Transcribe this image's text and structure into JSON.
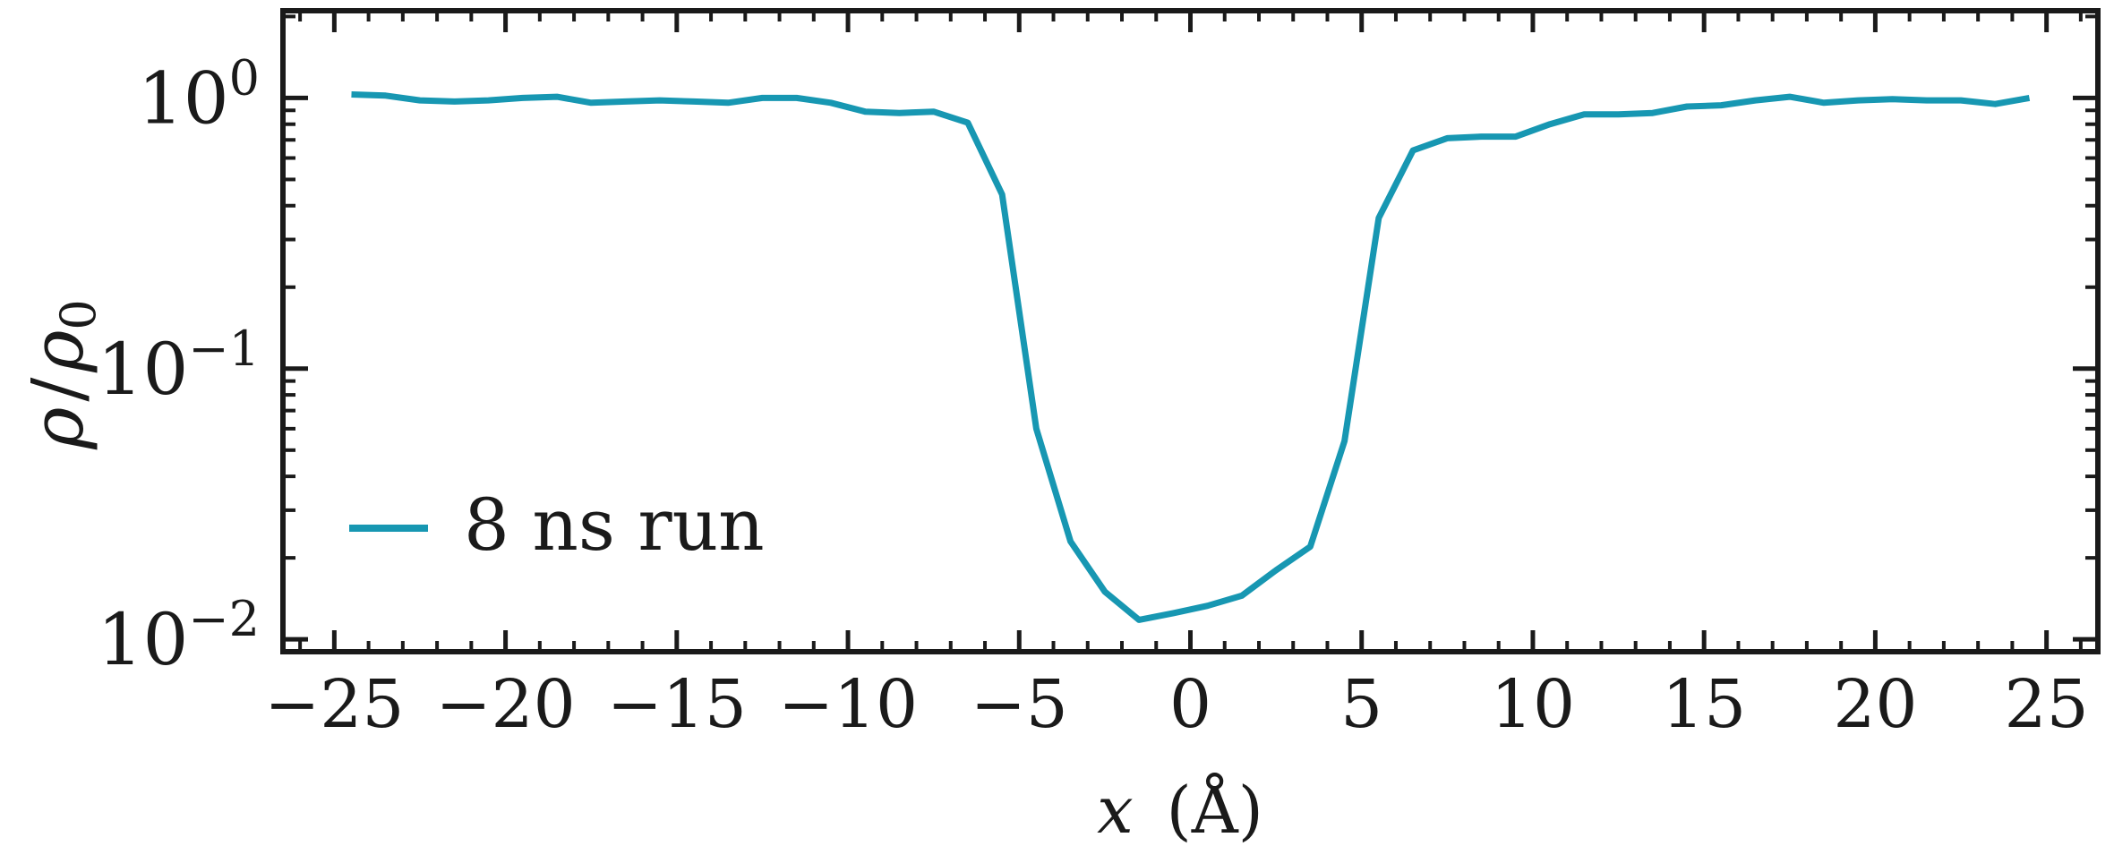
{
  "chart_data": {
    "type": "line",
    "xlabel_var": "x",
    "xlabel_unit": "(Å)",
    "ylabel_num": "ρ",
    "ylabel_den": "ρ",
    "ylabel_den_sub": "0",
    "yscale": "log",
    "xlim": [
      -26.5,
      26.5
    ],
    "ylim": [
      0.009,
      2.1
    ],
    "xticks": [
      {
        "value": -25,
        "label": "−25"
      },
      {
        "value": -20,
        "label": "−20"
      },
      {
        "value": -15,
        "label": "−15"
      },
      {
        "value": -10,
        "label": "−10"
      },
      {
        "value": -5,
        "label": "−5"
      },
      {
        "value": 0,
        "label": "0"
      },
      {
        "value": 5,
        "label": "5"
      },
      {
        "value": 10,
        "label": "10"
      },
      {
        "value": 15,
        "label": "15"
      },
      {
        "value": 20,
        "label": "20"
      },
      {
        "value": 25,
        "label": "25"
      }
    ],
    "yticks": [
      {
        "value": 1,
        "base": "10",
        "exp": "0"
      },
      {
        "value": 0.1,
        "base": "10",
        "exp": "−1"
      },
      {
        "value": 0.01,
        "base": "10",
        "exp": "−2"
      }
    ],
    "legend": {
      "label": "8 ns run",
      "position": "lower-left"
    },
    "series": [
      {
        "name": "8 ns run",
        "color": "#1797b2",
        "x": [
          -24.5,
          -23.5,
          -22.5,
          -21.5,
          -20.5,
          -19.5,
          -18.5,
          -17.5,
          -16.5,
          -15.5,
          -14.5,
          -13.5,
          -12.5,
          -11.5,
          -10.5,
          -9.5,
          -8.5,
          -7.5,
          -6.5,
          -5.5,
          -4.5,
          -3.5,
          -2.5,
          -1.5,
          -0.5,
          0.5,
          1.5,
          2.5,
          3.5,
          4.5,
          5.5,
          6.5,
          7.5,
          8.5,
          9.5,
          10.5,
          11.5,
          12.5,
          13.5,
          14.5,
          15.5,
          16.5,
          17.5,
          18.5,
          19.5,
          20.5,
          21.5,
          22.5,
          23.5,
          24.5
        ],
        "y": [
          1.03,
          1.02,
          0.98,
          0.97,
          0.98,
          1.0,
          1.01,
          0.96,
          0.97,
          0.98,
          0.97,
          0.96,
          1.0,
          1.0,
          0.96,
          0.89,
          0.88,
          0.89,
          0.81,
          0.44,
          0.06,
          0.023,
          0.015,
          0.0118,
          0.0125,
          0.0133,
          0.0145,
          0.018,
          0.022,
          0.054,
          0.36,
          0.64,
          0.71,
          0.72,
          0.72,
          0.8,
          0.87,
          0.87,
          0.88,
          0.93,
          0.94,
          0.98,
          1.01,
          0.96,
          0.98,
          0.99,
          0.98,
          0.98,
          0.95,
          1.0
        ]
      }
    ]
  }
}
